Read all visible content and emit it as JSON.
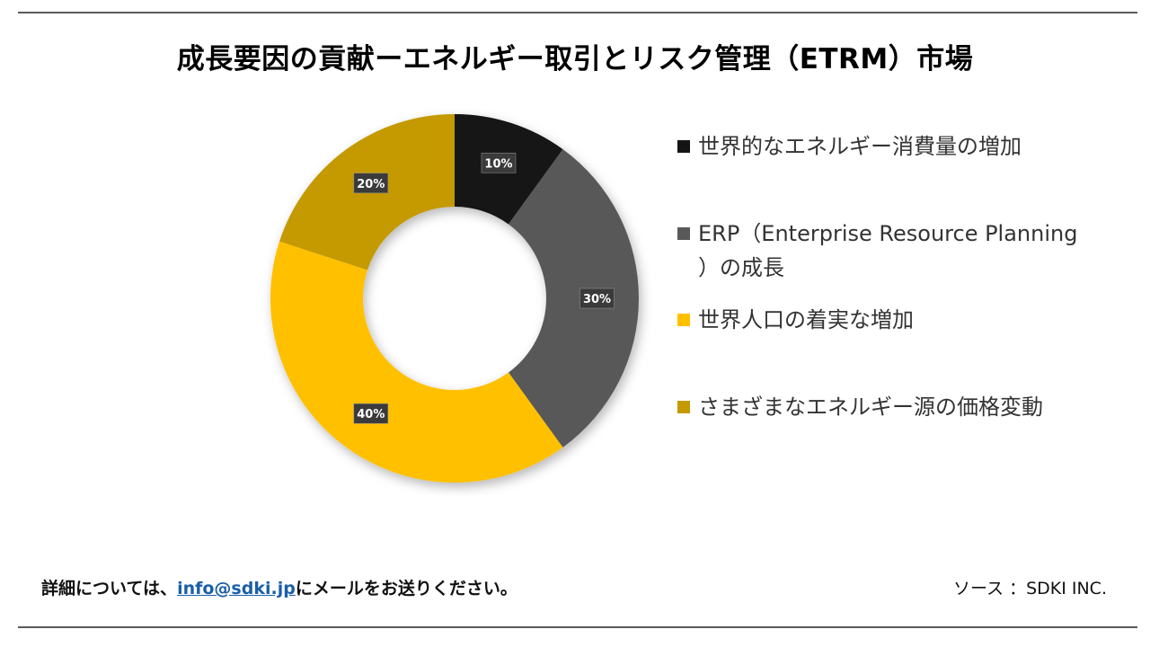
{
  "chart_data": {
    "type": "pie",
    "donut": true,
    "title": "成長要因の貢献ーエネルギー取引とリスク管理（ETRM）市場",
    "categories": [
      "世界的なエネルギー消費量の増加",
      "ERP（Enterprise Resource Planning）の成長",
      "世界人口の着実な増加",
      "さまざまなエネルギー源の価格変動"
    ],
    "values": [
      10,
      30,
      40,
      20
    ],
    "value_labels": [
      "10%",
      "30%",
      "40%",
      "20%"
    ],
    "colors": [
      "#141414",
      "#595959",
      "#ffc000",
      "#c49a00"
    ],
    "legend_position": "right"
  },
  "legend": {
    "items": [
      {
        "label": "世界的なエネルギー消費量の増加"
      },
      {
        "label_line1": "ERP（Enterprise Resource Planning",
        "label_line2": "）の成長"
      },
      {
        "label": "世界人口の着実な増加"
      },
      {
        "label": "さまざまなエネルギー源の価格変動"
      }
    ]
  },
  "footer": {
    "contact_prefix": "詳細については、",
    "contact_email": "info@sdki.jp",
    "contact_suffix": "にメールをお送りください。",
    "source": "ソース ：SDKI INC."
  }
}
